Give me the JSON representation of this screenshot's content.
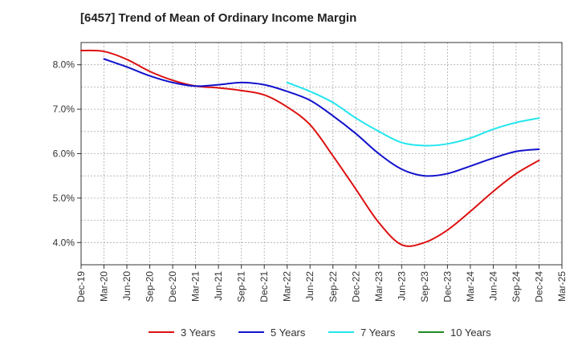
{
  "chart_data": {
    "type": "line",
    "title": "[6457]  Trend of Mean of Ordinary Income Margin",
    "xlabel": "",
    "ylabel": "",
    "x_ticks": [
      "Dec-19",
      "Mar-20",
      "Jun-20",
      "Sep-20",
      "Dec-20",
      "Mar-21",
      "Jun-21",
      "Sep-21",
      "Dec-21",
      "Mar-22",
      "Jun-22",
      "Sep-22",
      "Dec-22",
      "Mar-23",
      "Jun-23",
      "Sep-23",
      "Dec-23",
      "Mar-24",
      "Jun-24",
      "Sep-24",
      "Dec-24",
      "Mar-25"
    ],
    "y_ticks": [
      "4.0%",
      "5.0%",
      "6.0%",
      "7.0%",
      "8.0%"
    ],
    "y_tick_values": [
      4.0,
      5.0,
      6.0,
      7.0,
      8.0
    ],
    "ylim": [
      3.5,
      8.5
    ],
    "grid": true,
    "legend_position": "bottom",
    "series": [
      {
        "name": "3 Years",
        "color": "#dd1111",
        "x": [
          "Dec-19",
          "Mar-20",
          "Jun-20",
          "Sep-20",
          "Dec-20",
          "Mar-21",
          "Jun-21",
          "Sep-21",
          "Dec-21",
          "Mar-22",
          "Jun-22",
          "Sep-22",
          "Dec-22",
          "Mar-23",
          "Jun-23",
          "Sep-23",
          "Dec-23",
          "Mar-24",
          "Jun-24",
          "Sep-24",
          "Dec-24"
        ],
        "values": [
          8.32,
          8.3,
          8.12,
          7.85,
          7.65,
          7.52,
          7.48,
          7.42,
          7.32,
          7.05,
          6.65,
          5.95,
          5.2,
          4.45,
          3.95,
          4.0,
          4.28,
          4.7,
          5.15,
          5.55,
          5.85
        ]
      },
      {
        "name": "5 Years",
        "color": "#1111cc",
        "x": [
          "Mar-20",
          "Jun-20",
          "Sep-20",
          "Dec-20",
          "Mar-21",
          "Jun-21",
          "Sep-21",
          "Dec-21",
          "Mar-22",
          "Jun-22",
          "Sep-22",
          "Dec-22",
          "Mar-23",
          "Jun-23",
          "Sep-23",
          "Dec-23",
          "Mar-24",
          "Jun-24",
          "Sep-24",
          "Dec-24"
        ],
        "values": [
          8.13,
          7.95,
          7.75,
          7.6,
          7.52,
          7.55,
          7.6,
          7.55,
          7.4,
          7.2,
          6.85,
          6.45,
          6.0,
          5.65,
          5.5,
          5.55,
          5.72,
          5.9,
          6.05,
          6.1
        ]
      },
      {
        "name": "7 Years",
        "color": "#22e5ee",
        "x": [
          "Mar-22",
          "Jun-22",
          "Sep-22",
          "Dec-22",
          "Mar-23",
          "Jun-23",
          "Sep-23",
          "Dec-23",
          "Mar-24",
          "Jun-24",
          "Sep-24",
          "Dec-24"
        ],
        "values": [
          7.6,
          7.4,
          7.15,
          6.8,
          6.5,
          6.25,
          6.18,
          6.22,
          6.35,
          6.55,
          6.7,
          6.8
        ]
      },
      {
        "name": "10 Years",
        "color": "#228b22",
        "x": [],
        "values": []
      }
    ]
  }
}
